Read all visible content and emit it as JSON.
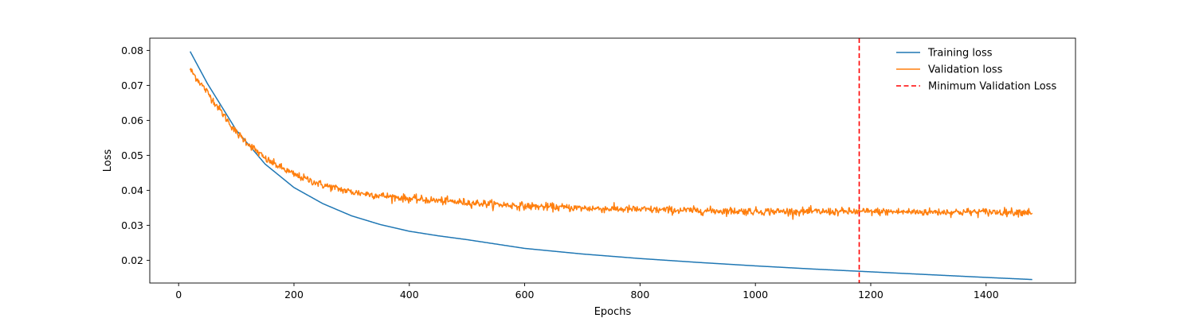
{
  "chart_data": {
    "type": "line",
    "xlabel": "Epochs",
    "ylabel": "Loss",
    "xlim": [
      -50,
      1555
    ],
    "ylim": [
      0.0135,
      0.0835
    ],
    "xticks": [
      0,
      200,
      400,
      600,
      800,
      1000,
      1200,
      1400
    ],
    "yticks": [
      0.02,
      0.03,
      0.04,
      0.05,
      0.06,
      0.07,
      0.08
    ],
    "xtick_labels": [
      "0",
      "200",
      "400",
      "600",
      "800",
      "1000",
      "1200",
      "1400"
    ],
    "ytick_labels": [
      "0.02",
      "0.03",
      "0.04",
      "0.05",
      "0.06",
      "0.07",
      "0.08"
    ],
    "grid": false,
    "legend": {
      "position": "top-right"
    },
    "series": [
      {
        "name": "Training loss",
        "color": "#1f77b4",
        "style": "solid",
        "x": [
          20,
          50,
          100,
          150,
          200,
          250,
          300,
          350,
          400,
          450,
          500,
          600,
          700,
          800,
          900,
          1000,
          1100,
          1200,
          1300,
          1400,
          1480
        ],
        "y": [
          0.0797,
          0.0705,
          0.0572,
          0.0475,
          0.0408,
          0.0362,
          0.0327,
          0.0302,
          0.0283,
          0.027,
          0.0259,
          0.0234,
          0.0218,
          0.0205,
          0.0194,
          0.0184,
          0.0175,
          0.0167,
          0.0159,
          0.0151,
          0.0145
        ]
      },
      {
        "name": "Validation loss",
        "color": "#ff7f0e",
        "style": "solid",
        "x": [
          20,
          50,
          100,
          150,
          200,
          250,
          300,
          350,
          400,
          500,
          600,
          700,
          800,
          900,
          1000,
          1100,
          1200,
          1300,
          1400,
          1480
        ],
        "y": [
          0.0745,
          0.068,
          0.0565,
          0.049,
          0.0445,
          0.0415,
          0.0395,
          0.0385,
          0.0376,
          0.0365,
          0.0355,
          0.0349,
          0.0345,
          0.0342,
          0.034,
          0.0339,
          0.0339,
          0.0338,
          0.0338,
          0.0338
        ]
      }
    ],
    "vlines": [
      {
        "name": "Minimum Validation Loss",
        "color": "#ff0000",
        "style": "dashed",
        "x": 1180
      }
    ]
  }
}
